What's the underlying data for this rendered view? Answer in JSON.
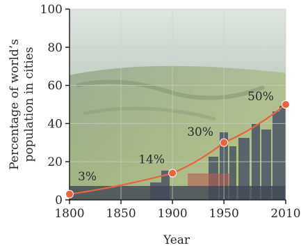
{
  "chart_data": {
    "type": "line",
    "title": "",
    "xlabel": "Year",
    "ylabel_lines": [
      "Percentage of world’s",
      "population in cities"
    ],
    "x": [
      1800,
      1900,
      1950,
      2010
    ],
    "values": [
      3,
      14,
      30,
      50
    ],
    "data_labels": [
      "3%",
      "14%",
      "30%",
      "50%"
    ],
    "xlim": [
      1800,
      2010
    ],
    "ylim": [
      0,
      100
    ],
    "x_ticks": [
      1800,
      1850,
      1900,
      1950,
      2010
    ],
    "y_ticks": [
      0,
      20,
      40,
      60,
      80,
      100
    ],
    "grid": true,
    "legend": "none",
    "colors": {
      "line": "#e8643c",
      "marker": "#e8643c",
      "marker_stroke": "#ffffff",
      "grid": "#c9d3c4",
      "axis": "#222222",
      "photo_sky": "#cfd8d2",
      "photo_fields": "#a9b98c",
      "photo_city": "#4a5564"
    },
    "background": "city-and-fields-photo"
  }
}
